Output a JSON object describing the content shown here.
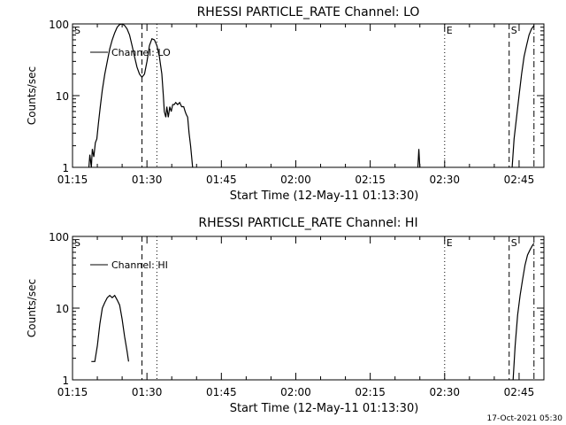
{
  "footer_timestamp": "17-Oct-2021 05:30",
  "chart_data": [
    {
      "type": "line",
      "title": "RHESSI PARTICLE_RATE Channel: LO",
      "xlabel": "Start Time (12-May-11 01:13:30)",
      "ylabel": "Counts/sec",
      "yscale": "log",
      "ylim": [
        1,
        100
      ],
      "yticks": [
        1,
        10,
        100
      ],
      "ytick_labels": [
        "1",
        "10",
        "100"
      ],
      "xlim_minutes": [
        75,
        170
      ],
      "xtick_labels": [
        "01:15",
        "01:30",
        "01:45",
        "02:00",
        "02:15",
        "02:30",
        "02:45"
      ],
      "legend": "Channel: LO",
      "legend_position": "top-left",
      "markers": [
        {
          "label": "S",
          "time": "01:15",
          "style": "none"
        },
        {
          "label": "",
          "time": "01:29",
          "style": "dashed"
        },
        {
          "label": "",
          "time": "01:32",
          "style": "dotted"
        },
        {
          "label": "E",
          "time": "02:30",
          "style": "dotted"
        },
        {
          "label": "S",
          "time": "02:43",
          "style": "dashed"
        },
        {
          "label": "",
          "time": "02:48",
          "style": "dashdot"
        }
      ],
      "series": [
        {
          "name": "Channel: LO",
          "segments": [
            [
              [
                78.3,
                1
              ],
              [
                78.5,
                1.5
              ],
              [
                78.8,
                1
              ],
              [
                79.0,
                1.8
              ],
              [
                79.3,
                1.4
              ],
              [
                79.6,
                2.2
              ],
              [
                79.9,
                2.5
              ],
              [
                80.2,
                4
              ],
              [
                80.6,
                7
              ],
              [
                81.0,
                12
              ],
              [
                81.5,
                20
              ],
              [
                82.0,
                30
              ],
              [
                82.5,
                45
              ],
              [
                83.0,
                60
              ],
              [
                83.5,
                75
              ],
              [
                84.0,
                90
              ],
              [
                84.5,
                98
              ],
              [
                85.0,
                100
              ],
              [
                85.5,
                95
              ],
              [
                86.0,
                85
              ],
              [
                86.5,
                70
              ],
              [
                87.0,
                50
              ],
              [
                87.5,
                35
              ],
              [
                88.0,
                25
              ],
              [
                88.5,
                20
              ],
              [
                89.0,
                18
              ],
              [
                89.5,
                20
              ],
              [
                90.0,
                30
              ],
              [
                90.5,
                50
              ],
              [
                91.0,
                62
              ],
              [
                91.5,
                60
              ],
              [
                92.0,
                50
              ],
              [
                92.5,
                35
              ],
              [
                93.0,
                20
              ],
              [
                93.3,
                10
              ],
              [
                93.5,
                6
              ],
              [
                93.8,
                5
              ],
              [
                94.0,
                7
              ],
              [
                94.3,
                5
              ],
              [
                94.6,
                7
              ],
              [
                94.9,
                6
              ],
              [
                95.2,
                7.5
              ],
              [
                95.5,
                7.5
              ],
              [
                95.8,
                8
              ],
              [
                96.2,
                7.5
              ],
              [
                96.6,
                8
              ],
              [
                97.0,
                7
              ],
              [
                97.4,
                7
              ],
              [
                97.7,
                6
              ],
              [
                97.9,
                5.5
              ],
              [
                98.2,
                5
              ],
              [
                98.5,
                3
              ],
              [
                98.8,
                2
              ],
              [
                99.0,
                1.4
              ],
              [
                99.2,
                1
              ]
            ],
            [
              [
                144.6,
                1
              ],
              [
                144.8,
                1.8
              ],
              [
                145.0,
                1
              ]
            ],
            [
              [
                163.6,
                1
              ],
              [
                164.0,
                2.5
              ],
              [
                164.5,
                5
              ],
              [
                165.0,
                10
              ],
              [
                165.5,
                20
              ],
              [
                166.0,
                35
              ],
              [
                166.5,
                50
              ],
              [
                167.0,
                70
              ],
              [
                167.5,
                85
              ],
              [
                168.0,
                95
              ]
            ]
          ]
        }
      ]
    },
    {
      "type": "line",
      "title": "RHESSI PARTICLE_RATE Channel: HI",
      "xlabel": "Start Time (12-May-11 01:13:30)",
      "ylabel": "Counts/sec",
      "yscale": "log",
      "ylim": [
        1,
        100
      ],
      "yticks": [
        1,
        10,
        100
      ],
      "ytick_labels": [
        "1",
        "10",
        "100"
      ],
      "xlim_minutes": [
        75,
        170
      ],
      "xtick_labels": [
        "01:15",
        "01:30",
        "01:45",
        "02:00",
        "02:15",
        "02:30",
        "02:45"
      ],
      "legend": "Channel: HI",
      "legend_position": "top-left",
      "markers": [
        {
          "label": "S",
          "time": "01:15",
          "style": "none"
        },
        {
          "label": "",
          "time": "01:29",
          "style": "dashed"
        },
        {
          "label": "",
          "time": "01:32",
          "style": "dotted"
        },
        {
          "label": "E",
          "time": "02:30",
          "style": "dotted"
        },
        {
          "label": "S",
          "time": "02:43",
          "style": "dashed"
        },
        {
          "label": "",
          "time": "02:48",
          "style": "dashdot"
        }
      ],
      "series": [
        {
          "name": "Channel: HI",
          "segments": [
            [
              [
                78.8,
                1.8
              ],
              [
                79.5,
                1.8
              ],
              [
                80.0,
                3
              ],
              [
                80.5,
                6
              ],
              [
                81.0,
                10
              ],
              [
                81.5,
                12
              ],
              [
                82.0,
                14
              ],
              [
                82.5,
                15
              ],
              [
                83.0,
                14
              ],
              [
                83.5,
                15
              ],
              [
                84.0,
                13
              ],
              [
                84.5,
                11
              ],
              [
                85.0,
                7
              ],
              [
                85.5,
                4
              ],
              [
                86.0,
                2.5
              ],
              [
                86.3,
                1.8
              ]
            ],
            [
              [
                163.8,
                1
              ],
              [
                164.2,
                3
              ],
              [
                164.7,
                8
              ],
              [
                165.2,
                15
              ],
              [
                165.7,
                25
              ],
              [
                166.2,
                40
              ],
              [
                166.7,
                55
              ],
              [
                167.2,
                65
              ],
              [
                167.7,
                75
              ],
              [
                168.0,
                80
              ]
            ]
          ]
        }
      ]
    }
  ]
}
